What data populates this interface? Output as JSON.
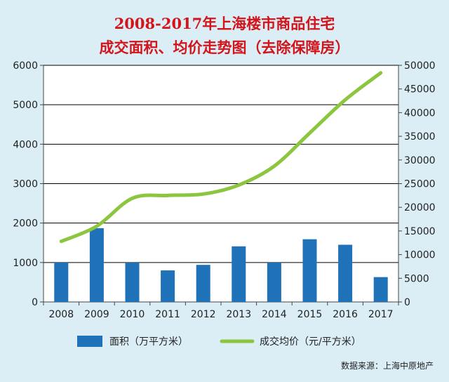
{
  "chart_data": {
    "type": "bar+line",
    "title": "2008-2017年上海楼市商品住宅",
    "subtitle": "成交面积、均价走势图（去除保障房）",
    "categories": [
      "2008",
      "2009",
      "2010",
      "2011",
      "2012",
      "2013",
      "2014",
      "2015",
      "2016",
      "2017"
    ],
    "series": [
      {
        "name": "面积（万平方米）",
        "type": "bar",
        "axis": "left",
        "color": "#1f72b8",
        "values": [
          1000,
          1870,
          1000,
          800,
          940,
          1410,
          1000,
          1590,
          1450,
          630
        ]
      },
      {
        "name": "成交均价（元/平方米）",
        "type": "line",
        "axis": "right",
        "color": "#8cc63f",
        "values": [
          12800,
          16000,
          21900,
          22500,
          22800,
          24700,
          28700,
          35700,
          42700,
          48400
        ]
      }
    ],
    "ylim_left": [
      0,
      6000
    ],
    "yticks_left": [
      0,
      1000,
      2000,
      3000,
      4000,
      5000,
      6000
    ],
    "ylim_right": [
      0,
      50000
    ],
    "yticks_right": [
      0,
      5000,
      10000,
      15000,
      20000,
      25000,
      30000,
      35000,
      40000,
      45000,
      50000
    ],
    "grid": true,
    "legend_position": "bottom"
  },
  "source": "数据来源：上海中原地产"
}
